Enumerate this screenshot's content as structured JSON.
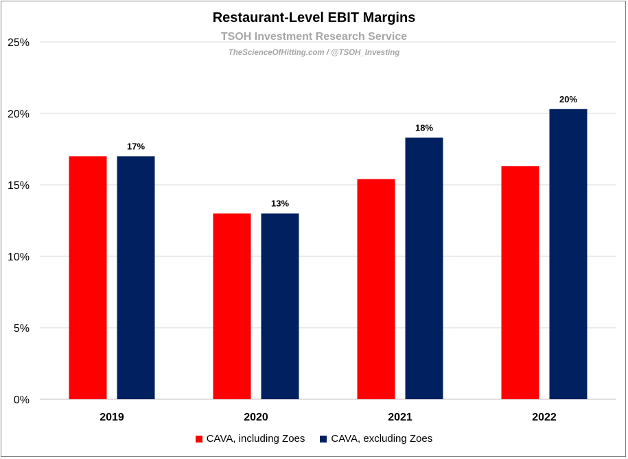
{
  "chart_data": {
    "type": "bar",
    "title": "Restaurant-Level EBIT Margins",
    "subtitle": "TSOH Investment Research Service",
    "source": "TheScienceOfHitting.com / @TSOH_Investing",
    "categories": [
      "2019",
      "2020",
      "2021",
      "2022"
    ],
    "series": [
      {
        "name": "CAVA, including Zoes",
        "color": "#ff0000",
        "values": [
          17.0,
          13.0,
          15.4,
          16.3
        ],
        "labels": [
          "",
          "",
          "",
          ""
        ]
      },
      {
        "name": "CAVA, excluding Zoes",
        "color": "#002060",
        "values": [
          17.0,
          13.0,
          18.3,
          20.3
        ],
        "labels": [
          "17%",
          "13%",
          "18%",
          "20%"
        ]
      }
    ],
    "ylim": [
      0,
      25
    ],
    "yticks": [
      0,
      5,
      10,
      15,
      20,
      25
    ],
    "ytick_labels": [
      "0%",
      "5%",
      "10%",
      "15%",
      "20%",
      "25%"
    ],
    "grid": true,
    "legend_position": "bottom"
  }
}
